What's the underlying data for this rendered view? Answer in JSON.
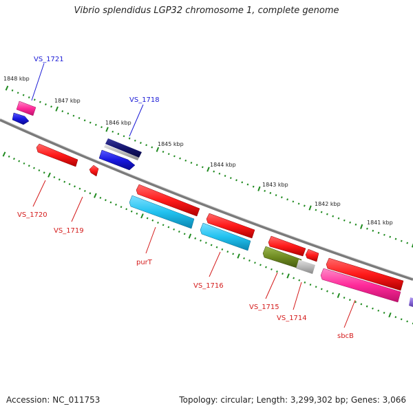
{
  "title": "Vibrio splendidus LGP32 chromosome 1, complete genome",
  "footer": {
    "accession": "Accession: NC_011753",
    "summary": "Topology: circular; Length: 3,299,302 bp; Genes: 3,066"
  },
  "colors": {
    "backbone": "#7a7a7a",
    "tick": "#1f8a1f",
    "label_top": "#1a1ad6",
    "label_bottom": "#d41a1a",
    "gene_red": "#ff1a1a",
    "gene_blue": "#1818e0",
    "gene_navy": "#14146e",
    "gene_cyan": "#22c2f0",
    "gene_magenta": "#ff2a9a",
    "gene_olive": "#6e8a20",
    "gene_gray": "#b9b9b9",
    "gene_violet": "#8a6ad8"
  },
  "kbp_labels": [
    "1848 kbp",
    "1847 kbp",
    "1846 kbp",
    "1845 kbp",
    "1844 kbp",
    "1843 kbp",
    "1842 kbp",
    "1841 kbp"
  ],
  "gene_labels_top": [
    "VS_1721",
    "VS_1718"
  ],
  "gene_labels_bottom": [
    "VS_1720",
    "VS_1719",
    "purT",
    "VS_1716",
    "VS_1715",
    "VS_1714",
    "sbcB"
  ]
}
